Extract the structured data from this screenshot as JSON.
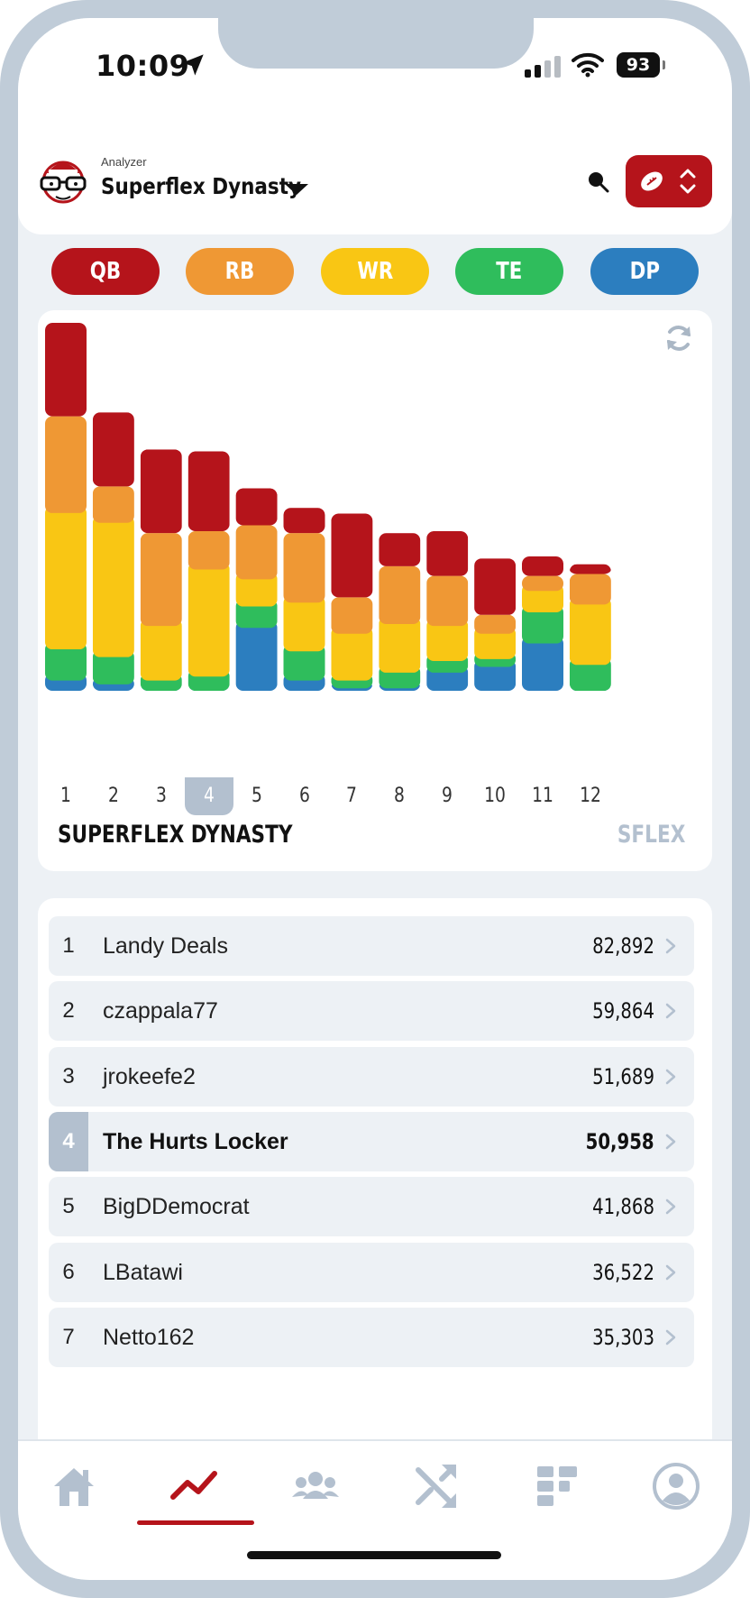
{
  "status_bar": {
    "time": "10:09",
    "battery": "93"
  },
  "header": {
    "subtitle": "Analyzer",
    "title": "Superflex Dynasty"
  },
  "positions": [
    {
      "label": "QB",
      "color": "#b5141b"
    },
    {
      "label": "RB",
      "color": "#ef9834"
    },
    {
      "label": "WR",
      "color": "#f9c614"
    },
    {
      "label": "TE",
      "color": "#2fbd5c"
    },
    {
      "label": "DP",
      "color": "#2c7ebf"
    }
  ],
  "chart_data": {
    "type": "bar",
    "stacked": true,
    "categories": [
      "1",
      "2",
      "3",
      "4",
      "5",
      "6",
      "7",
      "8",
      "9",
      "10",
      "11",
      "12"
    ],
    "selected_category": "4",
    "title": "SUPERFLEX DYNASTY",
    "tag": "SFLEX",
    "series": [
      {
        "name": "DP",
        "color": "#2c7ebf",
        "values": [
          4.5,
          3.5,
          1.5,
          1.5,
          18.0,
          4.5,
          2.5,
          2.5,
          6.5,
          8.0,
          14.0,
          1.5
        ]
      },
      {
        "name": "TE",
        "color": "#2fbd5c",
        "values": [
          8.0,
          7.0,
          3.0,
          4.0,
          5.5,
          7.5,
          2.0,
          4.0,
          3.0,
          2.0,
          8.0,
          7.0
        ]
      },
      {
        "name": "WR",
        "color": "#f9c614",
        "values": [
          35.0,
          34.5,
          14.0,
          27.5,
          7.0,
          12.5,
          12.0,
          12.5,
          9.0,
          6.5,
          5.5,
          15.5
        ]
      },
      {
        "name": "RB",
        "color": "#ef9834",
        "values": [
          23.0,
          7.5,
          22.0,
          8.0,
          12.0,
          16.0,
          7.5,
          13.0,
          11.0,
          3.0,
          2.0,
          6.0
        ]
      },
      {
        "name": "QB",
        "color": "#b5141b",
        "values": [
          24.0,
          19.0,
          21.5,
          20.5,
          9.5,
          6.5,
          21.5,
          8.5,
          11.5,
          14.5,
          5.0,
          2.5
        ]
      }
    ]
  },
  "rankings": [
    {
      "rank": "1",
      "name": "Landy Deals",
      "value": "82,892",
      "highlight": false
    },
    {
      "rank": "2",
      "name": "czappala77",
      "value": "59,864",
      "highlight": false
    },
    {
      "rank": "3",
      "name": "jrokeefe2",
      "value": "51,689",
      "highlight": false
    },
    {
      "rank": "4",
      "name": "The Hurts Locker",
      "value": "50,958",
      "highlight": true
    },
    {
      "rank": "5",
      "name": "BigDDemocrat",
      "value": "41,868",
      "highlight": false
    },
    {
      "rank": "6",
      "name": "LBatawi",
      "value": "36,522",
      "highlight": false
    },
    {
      "rank": "7",
      "name": "Netto162",
      "value": "35,303",
      "highlight": false
    }
  ],
  "nav": [
    {
      "icon": "home-icon",
      "active": false
    },
    {
      "icon": "trend-chart-icon",
      "active": true
    },
    {
      "icon": "users-group-icon",
      "active": false
    },
    {
      "icon": "shuffle-icon",
      "active": false
    },
    {
      "icon": "grid-icon",
      "active": false
    },
    {
      "icon": "profile-icon",
      "active": false
    }
  ]
}
